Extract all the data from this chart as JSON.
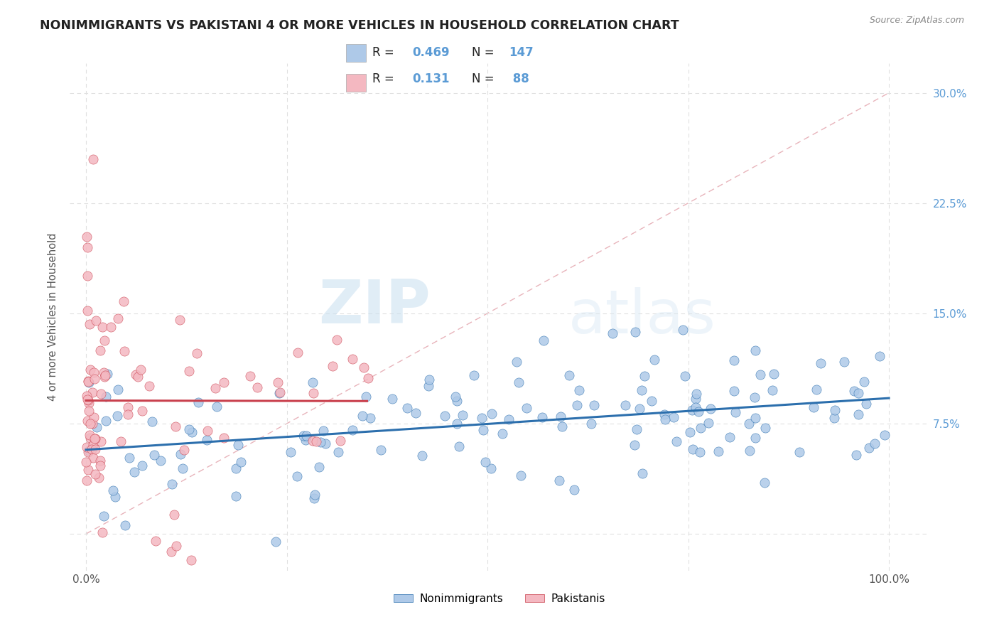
{
  "title": "NONIMMIGRANTS VS PAKISTANI 4 OR MORE VEHICLES IN HOUSEHOLD CORRELATION CHART",
  "source": "Source: ZipAtlas.com",
  "ylabel": "4 or more Vehicles in Household",
  "watermark_zip": "ZIP",
  "watermark_atlas": "atlas",
  "blue_R": 0.469,
  "blue_N": 147,
  "pink_R": 0.131,
  "pink_N": 88,
  "blue_color": "#aec9e8",
  "pink_color": "#f4b8c1",
  "blue_line_color": "#2c6fad",
  "pink_line_color": "#c9404d",
  "diagonal_color": "#e8b4bb",
  "background_color": "#ffffff",
  "legend_label_blue": "Nonimmigrants",
  "legend_label_pink": "Pakistanis",
  "right_tick_color": "#5b9bd5",
  "grid_color": "#e0e0e0",
  "title_color": "#222222",
  "source_color": "#888888",
  "ylabel_color": "#555555",
  "xtick_color": "#555555",
  "xlim": [
    -2,
    105
  ],
  "ylim": [
    -2.5,
    32
  ],
  "yticks": [
    0,
    7.5,
    15.0,
    22.5,
    30.0
  ],
  "xticks": [
    0,
    25,
    50,
    75,
    100
  ]
}
